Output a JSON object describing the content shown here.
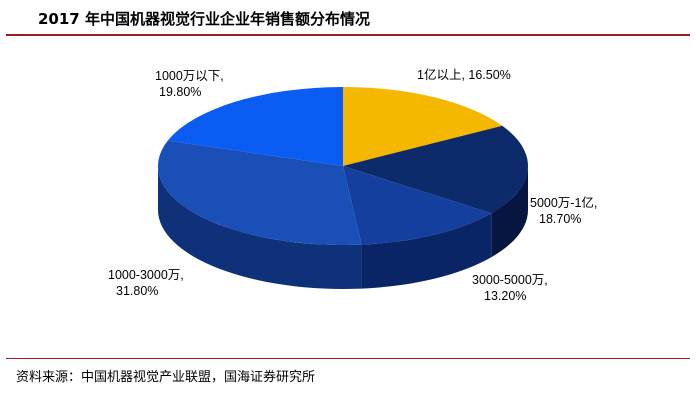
{
  "header": {
    "title": "2017 年中国机器视觉行业企业年销售额分布情况"
  },
  "footer": {
    "source": "资料来源：中国机器视觉产业联盟，国海证券研究所"
  },
  "chart_data": {
    "type": "pie",
    "title": "2017 年中国机器视觉行业企业年销售额分布情况",
    "slices": [
      {
        "label": "1亿以上",
        "percent_text": "16.50%",
        "value": 16.5,
        "color": "#f5b800",
        "dark": "#b88a00"
      },
      {
        "label": "5000万-1亿",
        "percent_text": "18.70%",
        "value": 18.7,
        "color": "#0d2a6b",
        "dark": "#061640"
      },
      {
        "label": "3000-5000万",
        "percent_text": "13.20%",
        "value": 13.2,
        "color": "#143f9e",
        "dark": "#0a2565"
      },
      {
        "label": "1000-3000万",
        "percent_text": "31.80%",
        "value": 31.8,
        "color": "#1a4fb8",
        "dark": "#0f317a"
      },
      {
        "label": "1000万以下",
        "percent_text": "19.80%",
        "value": 19.8,
        "color": "#0b5cf2",
        "dark": "#063a9e"
      }
    ],
    "labels": [
      {
        "line1": "1亿以上, 16.50%",
        "line2": ""
      },
      {
        "line1": "5000万-1亿,",
        "line2": "18.70%"
      },
      {
        "line1": "3000-5000万,",
        "line2": "13.20%"
      },
      {
        "line1": "1000-3000万,",
        "line2": "31.80%"
      },
      {
        "line1": "1000万以下,",
        "line2": "19.80%"
      }
    ]
  }
}
